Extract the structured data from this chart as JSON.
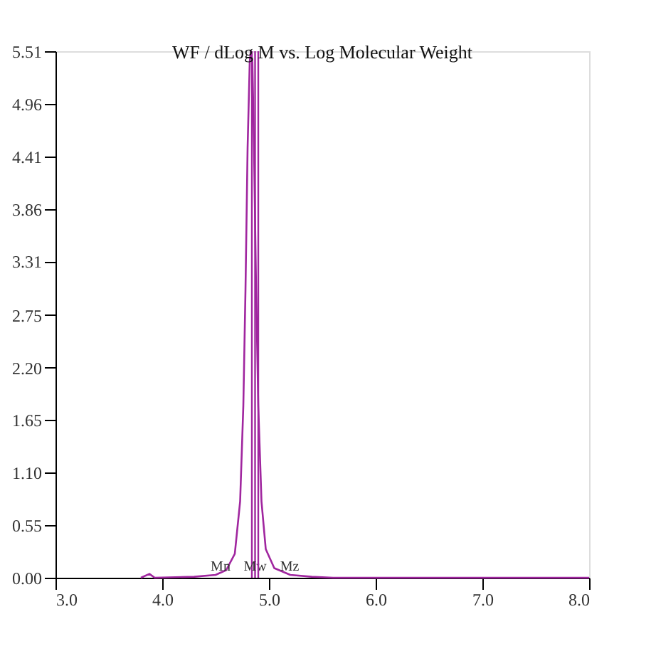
{
  "chart_data": {
    "type": "line",
    "title": "WF / dLog M vs. Log Molecular Weight",
    "series": [
      {
        "color": "#a0269f",
        "x": [
          3.8,
          3.88,
          3.93,
          4.3,
          4.5,
          4.6,
          4.68,
          4.73,
          4.76,
          4.78,
          4.8,
          4.82,
          4.83,
          4.845,
          4.86,
          4.88,
          4.9,
          4.93,
          4.97,
          5.05,
          5.2,
          5.4,
          5.6,
          8.0
        ],
        "values": [
          0,
          0.04,
          0,
          0.01,
          0.03,
          0.08,
          0.25,
          0.8,
          1.8,
          3.0,
          4.5,
          5.4,
          5.51,
          5.4,
          4.5,
          3.0,
          1.8,
          0.8,
          0.3,
          0.1,
          0.03,
          0.01,
          0,
          0
        ]
      }
    ],
    "xlim": [
      3.0,
      8.0
    ],
    "xticks": [
      {
        "value": 3,
        "label": "3.0"
      },
      {
        "value": 4,
        "label": "4.0"
      },
      {
        "value": 5,
        "label": "5.0"
      },
      {
        "value": 6,
        "label": "6.0"
      },
      {
        "value": 7,
        "label": "7.0"
      },
      {
        "value": 8,
        "label": "8.0"
      }
    ],
    "ylim": [
      0,
      5.51
    ],
    "yticks": [
      {
        "value": 0,
        "label": "0.00"
      },
      0.55,
      {
        "value": 1.1,
        "label": "1.10"
      },
      1.65,
      {
        "value": 2.2,
        "label": "2.20"
      },
      2.75,
      3.31,
      3.86,
      4.41,
      4.96,
      5.51
    ],
    "ref_lines": [
      {
        "axis": "x",
        "value": 4.84,
        "label": "Mn",
        "color": "#a0269f"
      },
      {
        "axis": "x",
        "value": 4.87,
        "label": "Mw",
        "color": "#a0269f"
      },
      {
        "axis": "x",
        "value": 4.9,
        "label": "Mz",
        "color": "#a0269f"
      }
    ],
    "grid": false,
    "marker": "none",
    "line_style": "solid"
  }
}
